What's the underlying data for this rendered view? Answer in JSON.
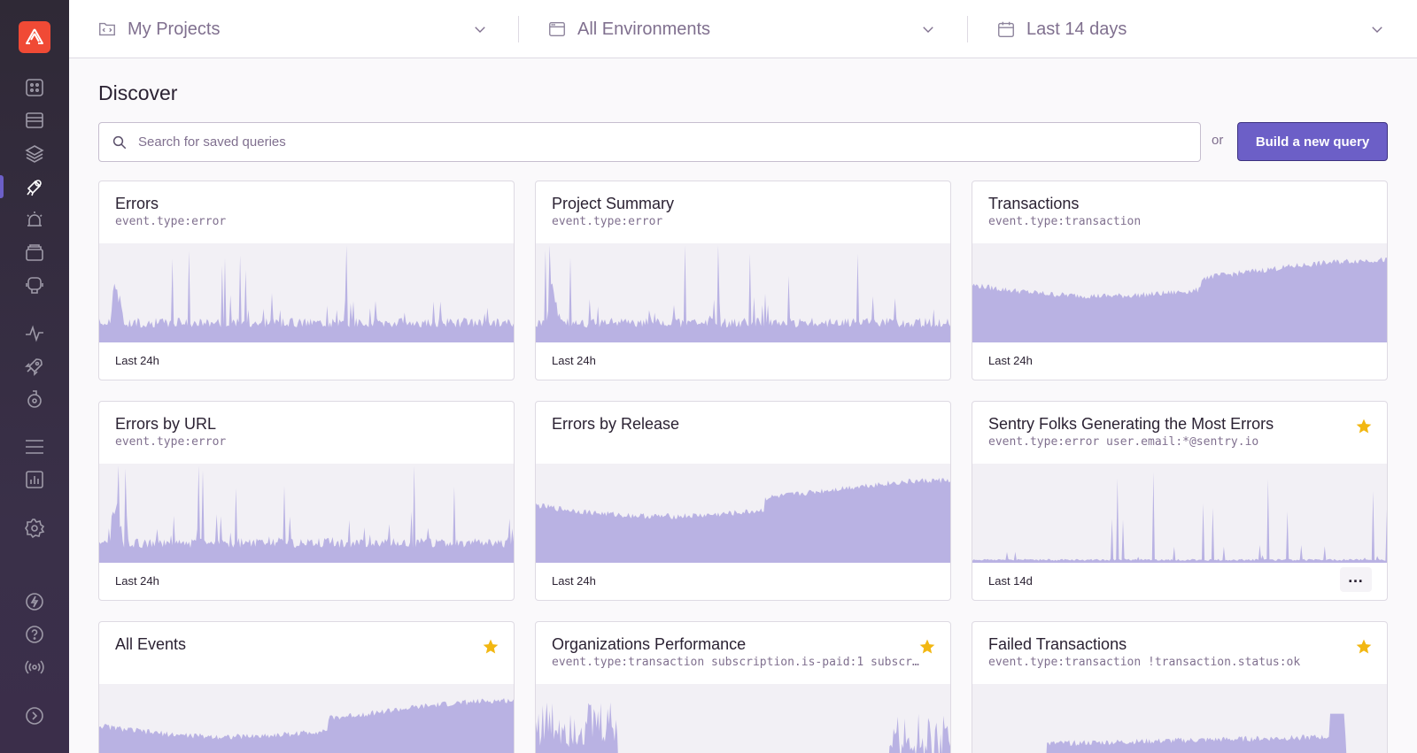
{
  "header": {
    "projects_label": "My Projects",
    "environments_label": "All Environments",
    "time_label": "Last 14 days"
  },
  "page": {
    "title": "Discover",
    "search_placeholder": "Search for saved queries",
    "or_label": "or",
    "build_button": "Build a new query"
  },
  "sidebar": {
    "icons": [
      "issues-icon",
      "projects-icon",
      "stack-icon",
      "discover-icon",
      "alerts-icon",
      "releases-icon",
      "user-feedback-icon",
      "performance-icon",
      "deploy-icon",
      "lab-icon",
      "menu-icon",
      "stats-icon",
      "settings-icon",
      "whats-new-icon",
      "help-icon",
      "broadcast-icon",
      "collapse-icon"
    ],
    "active": "discover-icon"
  },
  "colors": {
    "accent": "#6c5fc7",
    "chart_fill": "#b9b2e3",
    "star": "#f2b712",
    "logo": "#f04a35"
  },
  "queries": [
    {
      "title": "Errors",
      "query": "event.type:error",
      "footer": "Last 24h",
      "starred": false,
      "chart": "spiky"
    },
    {
      "title": "Project Summary",
      "query": "event.type:error",
      "footer": "Last 24h",
      "starred": false,
      "chart": "spiky"
    },
    {
      "title": "Transactions",
      "query": "event.type:transaction",
      "footer": "Last 24h",
      "starred": false,
      "chart": "wave"
    },
    {
      "title": "Errors by URL",
      "query": "event.type:error",
      "footer": "Last 24h",
      "starred": false,
      "chart": "spiky"
    },
    {
      "title": "Errors by Release",
      "query": "",
      "footer": "Last 24h",
      "starred": false,
      "chart": "wave"
    },
    {
      "title": "Sentry Folks Generating the Most Errors",
      "query": "event.type:error user.email:*@sentry.io",
      "footer": "Last 14d",
      "starred": true,
      "chart": "sparse",
      "has_menu": true
    },
    {
      "title": "All Events",
      "query": "",
      "footer": "",
      "starred": true,
      "chart": "wave"
    },
    {
      "title": "Organizations Performance",
      "query": "event.type:transaction subscription.is-paid:1 subscri…",
      "footer": "",
      "starred": true,
      "chart": "burst"
    },
    {
      "title": "Failed Transactions",
      "query": "event.type:transaction !transaction.status:ok",
      "footer": "",
      "starred": true,
      "chart": "plateau"
    }
  ]
}
